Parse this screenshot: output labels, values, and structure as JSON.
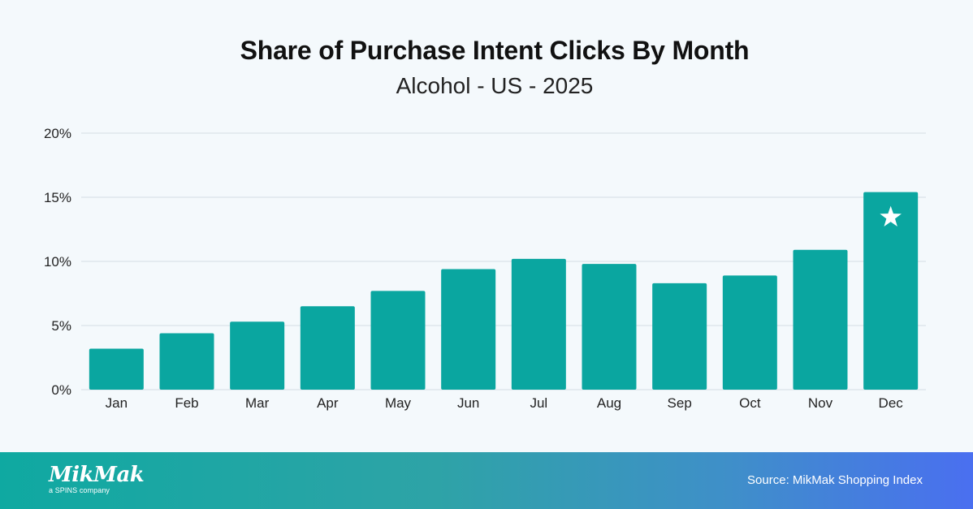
{
  "header": {
    "title": "Share of Purchase Intent Clicks By Month",
    "subtitle": "Alcohol - US - 2025"
  },
  "chart_data": {
    "type": "bar",
    "title": "Share of Purchase Intent Clicks By Month",
    "subtitle": "Alcohol - US - 2025",
    "categories": [
      "Jan",
      "Feb",
      "Mar",
      "Apr",
      "May",
      "Jun",
      "Jul",
      "Aug",
      "Sep",
      "Oct",
      "Nov",
      "Dec"
    ],
    "values": [
      3.2,
      4.4,
      5.3,
      6.5,
      7.7,
      9.4,
      10.2,
      9.8,
      8.3,
      8.9,
      10.9,
      15.4
    ],
    "unit": "%",
    "ylim": [
      0,
      20
    ],
    "yticks": [
      0,
      5,
      10,
      15,
      20
    ],
    "ytick_labels": [
      "0%",
      "5%",
      "10%",
      "15%",
      "20%"
    ],
    "grid": true,
    "bar_color": "#0aa6a0",
    "highlight": {
      "category": "Dec",
      "marker": "star-icon",
      "color": "#ffffff"
    }
  },
  "footer": {
    "logo_text": "MikMak",
    "logo_tagline": "a SPINS company",
    "source": "Source: MikMak Shopping Index",
    "gradient_colors": [
      "#0fa9a1",
      "#4a6ff0"
    ]
  }
}
